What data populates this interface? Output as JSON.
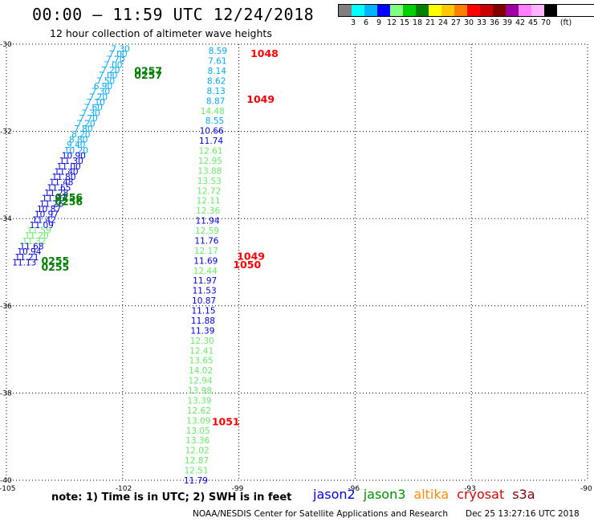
{
  "header": {
    "title": "00:00 – 11:59 UTC 12/24/2018",
    "subtitle": "12 hour collection of altimeter wave heights"
  },
  "color_legend": {
    "unit": "(ft)",
    "colors": [
      "#808080",
      "#00ffff",
      "#00b4ff",
      "#0000ff",
      "#80ff80",
      "#00d000",
      "#008000",
      "#ffff00",
      "#ffc800",
      "#ff8000",
      "#ff0000",
      "#c80000",
      "#800000",
      "#a000a0",
      "#ff80ff",
      "#ffb4ff",
      "#000000"
    ],
    "ticks": [
      "3",
      "6",
      "9",
      "12",
      "15",
      "18",
      "21",
      "24",
      "27",
      "30",
      "33",
      "36",
      "39",
      "42",
      "45",
      "70"
    ]
  },
  "footer": {
    "note": "note:  1) Time is in UTC;  2) SWH is in feet",
    "satellites": [
      {
        "name": "jason2",
        "color": "#0000ff"
      },
      {
        "name": "jason3",
        "color": "#009000"
      },
      {
        "name": "altika",
        "color": "#ff8c00"
      },
      {
        "name": "cryosat",
        "color": "#e00000"
      },
      {
        "name": "s3a",
        "color": "#800000"
      }
    ],
    "credit": "NOAA/NESDIS Center for Satellite Applications and Research",
    "timestamp": "Dec 25 13:27:16 UTC 2018"
  },
  "chart_data": {
    "type": "scatter",
    "xlim": [
      -105,
      -90
    ],
    "ylim": [
      -40,
      -30
    ],
    "x_ticks": [
      "-105",
      "-102",
      "-99",
      "-96",
      "-93",
      "-90"
    ],
    "y_ticks": [
      "-30",
      "-32",
      "-34",
      "-36",
      "-38",
      "-40"
    ],
    "grid": true,
    "track_east": {
      "x": -99.3,
      "y_start": -30.15,
      "y_end": -40.0,
      "labels": [
        "8.59",
        "7.61",
        "8.14",
        "8.62",
        "8.13",
        "8.87",
        "14.48",
        "8.55",
        "10.66",
        "11.74",
        "12.61",
        "12.95",
        "13.88",
        "13.53",
        "12.72",
        "12.11",
        "12.36",
        "11.94",
        "12.59",
        "11.76",
        "12.17",
        "11.69",
        "12.44",
        "11.97",
        "11.53",
        "10.87",
        "11.15",
        "11.88",
        "11.39",
        "12.30",
        "12.41",
        "13.65",
        "14.02",
        "12.94",
        "13.98",
        "13.39",
        "12.62",
        "13.09",
        "13.05",
        "13.36",
        "12.02",
        "12.87",
        "12.51",
        "11.79"
      ],
      "colors": [
        "#00aaff",
        "#00aaff",
        "#00aaff",
        "#00aaff",
        "#00aaff",
        "#00aaff",
        "#66ee66",
        "#00aaff",
        "#0000ee",
        "#0000ee",
        "#66ee66",
        "#66ee66",
        "#66ee66",
        "#66ee66",
        "#66ee66",
        "#66ee66",
        "#66ee66",
        "#0000ee",
        "#66ee66",
        "#0000ee",
        "#66ee66",
        "#0000ee",
        "#66ee66",
        "#0000ee",
        "#0000ee",
        "#0000ee",
        "#0000ee",
        "#0000ee",
        "#0000ee",
        "#66ee66",
        "#66ee66",
        "#66ee66",
        "#66ee66",
        "#66ee66",
        "#66ee66",
        "#66ee66",
        "#66ee66",
        "#66ee66",
        "#66ee66",
        "#66ee66",
        "#66ee66",
        "#66ee66",
        "#66ee66",
        "#0000ee"
      ]
    },
    "track_west": {
      "lon_start": -102.3,
      "lat_start": -30.1,
      "lon_end": -104.85,
      "lat_end": -35.0,
      "labels": [
        "7.30",
        "7.00",
        "7.70",
        "7.00",
        "7.20",
        "7.00",
        "7.50",
        "6.90",
        "7.30",
        "7.20",
        "7.10",
        "7.60",
        "7.30",
        "7.70",
        "7.20",
        "7.80",
        "8.20",
        "8.80",
        "9.40",
        "10.20",
        "10.90",
        "11.30",
        "11.00",
        "11.40",
        "11.80",
        "11.48",
        "11.65",
        "11.28",
        "11.33",
        "11.26",
        "10.87",
        "10.97",
        "11.42",
        "11.09",
        "11.59",
        "11.20",
        "11.32",
        "11.68",
        "10.94",
        "11.21",
        "11.13"
      ],
      "colors": [
        "#00aaff",
        "#00aaff",
        "#00aaff",
        "#00aaff",
        "#00aaff",
        "#00aaff",
        "#00aaff",
        "#00aaff",
        "#00aaff",
        "#00aaff",
        "#00aaff",
        "#00aaff",
        "#00aaff",
        "#00aaff",
        "#00aaff",
        "#00aaff",
        "#00aaff",
        "#00aaff",
        "#00aaff",
        "#00aaff",
        "#0000ee",
        "#0000ee",
        "#0000ee",
        "#0000ee",
        "#0000ee",
        "#0000ee",
        "#0000ee",
        "#0000ee",
        "#0000ee",
        "#0000ee",
        "#0000ee",
        "#0000ee",
        "#0000ee",
        "#0000ee",
        "#66ee66",
        "#66ee66",
        "#66ee66",
        "#0000ee",
        "#0000ee",
        "#0000ee",
        "#0000ee"
      ]
    },
    "time_labels": [
      {
        "text": "0257",
        "lon": -101.7,
        "lat": -30.6,
        "color": "#008000"
      },
      {
        "text": "0257",
        "lon": -101.7,
        "lat": -30.7,
        "color": "#008000"
      },
      {
        "text": "0256",
        "lon": -103.75,
        "lat": -33.5,
        "color": "#008000"
      },
      {
        "text": "0256",
        "lon": -103.75,
        "lat": -33.6,
        "color": "#008000"
      },
      {
        "text": "0255",
        "lon": -104.1,
        "lat": -34.95,
        "color": "#008000"
      },
      {
        "text": "0255",
        "lon": -104.1,
        "lat": -35.1,
        "color": "#008000"
      },
      {
        "text": "1048",
        "lon": -98.7,
        "lat": -30.2,
        "color": "#ff0000"
      },
      {
        "text": "1049",
        "lon": -98.8,
        "lat": -31.25,
        "color": "#ff0000"
      },
      {
        "text": "1049",
        "lon": -99.05,
        "lat": -34.85,
        "color": "#ff0000"
      },
      {
        "text": "1050",
        "lon": -99.15,
        "lat": -35.05,
        "color": "#ff0000"
      },
      {
        "text": "1051",
        "lon": -99.7,
        "lat": -38.65,
        "color": "#ff0000"
      }
    ]
  }
}
